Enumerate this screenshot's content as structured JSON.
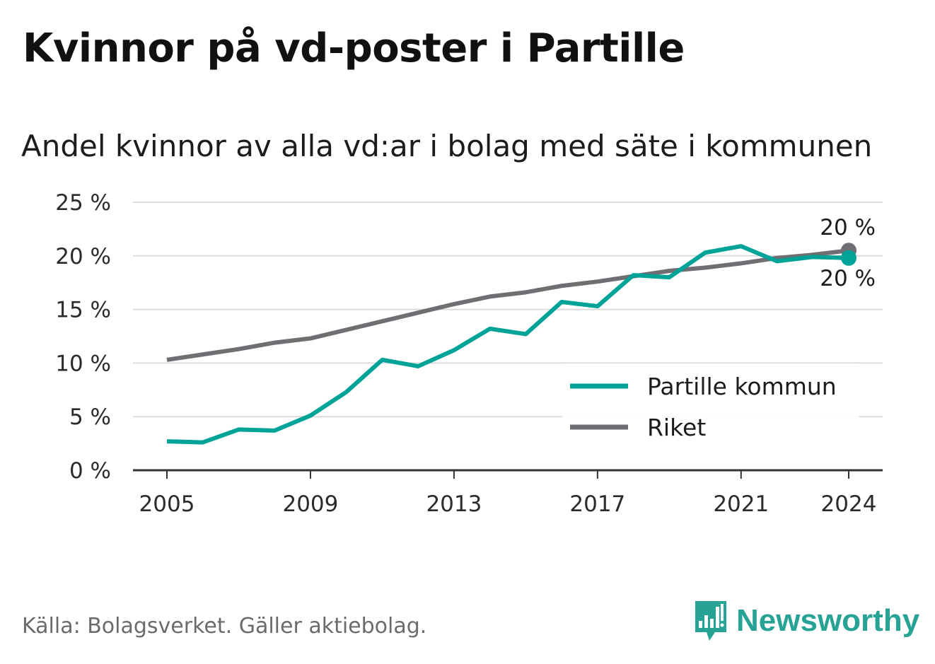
{
  "title": "Kvinnor på vd-poster i Partille",
  "subtitle": "Andel kvinnor av alla vd:ar i bolag med säte i kommunen",
  "source": "Källa: Bolagsverket. Gäller aktiebolag.",
  "brand": {
    "name": "Newsworthy",
    "icon": "bar-chart-speech-bubble-icon",
    "color": "#27a396"
  },
  "chart_data": {
    "type": "line",
    "x": [
      2005,
      2006,
      2007,
      2008,
      2009,
      2010,
      2011,
      2012,
      2013,
      2014,
      2015,
      2016,
      2017,
      2018,
      2019,
      2020,
      2021,
      2022,
      2023,
      2024
    ],
    "series": [
      {
        "name": "Partille kommun",
        "color": "#00a398",
        "values": [
          2.7,
          2.6,
          3.8,
          3.7,
          5.1,
          7.3,
          10.3,
          9.7,
          11.2,
          13.2,
          12.7,
          15.7,
          15.3,
          18.2,
          18.0,
          20.3,
          20.9,
          19.5,
          19.9,
          19.8
        ],
        "end_label": "20 %"
      },
      {
        "name": "Riket",
        "color": "#6e6e73",
        "values": [
          10.3,
          10.8,
          11.3,
          11.9,
          12.3,
          13.1,
          13.9,
          14.7,
          15.5,
          16.2,
          16.6,
          17.2,
          17.6,
          18.1,
          18.6,
          18.9,
          19.3,
          19.8,
          20.1,
          20.5
        ],
        "end_label": "20 %"
      }
    ],
    "xticks": [
      2005,
      2009,
      2013,
      2017,
      2021,
      2024
    ],
    "xtick_labels": [
      "2005",
      "2009",
      "2013",
      "2017",
      "2021",
      "2024"
    ],
    "yticks": [
      0,
      5,
      10,
      15,
      20,
      25
    ],
    "ytick_labels": [
      "0 %",
      "5 %",
      "10 %",
      "15 %",
      "20 %",
      "25 %"
    ],
    "ylim": [
      0,
      25
    ],
    "xlim": [
      2005,
      2024
    ],
    "grid": true,
    "legend_position": "bottom-right",
    "xlabel": "",
    "ylabel": ""
  }
}
